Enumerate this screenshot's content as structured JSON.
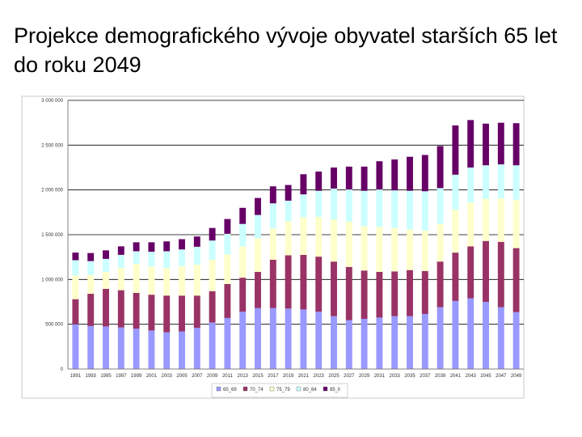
{
  "slide": {
    "title": "Projekce demografického vývoje obyvatel starších 65 let do roku 2049"
  },
  "chart_data": {
    "type": "bar",
    "stacked": true,
    "title": "",
    "xlabel": "",
    "ylabel": "",
    "ylim": [
      0,
      3000000
    ],
    "grid": true,
    "legend_position": "bottom",
    "y_ticks": [
      "0",
      "500 000",
      "1 000 000",
      "1 500 000",
      "2 000 000",
      "2 500 000",
      "3 000 000"
    ],
    "categories": [
      "1991",
      "1993",
      "1995",
      "1997",
      "1999",
      "2001",
      "2003",
      "2005",
      "2007",
      "2009",
      "2011",
      "2013",
      "2015",
      "2017",
      "2019",
      "2021",
      "2023",
      "2025",
      "2027",
      "2029",
      "2031",
      "2033",
      "2035",
      "2037",
      "2039",
      "2041",
      "2043",
      "2045",
      "2047",
      "2049"
    ],
    "series": [
      {
        "name": "65_69",
        "color": "#9999ff",
        "values": [
          500000,
          480000,
          475000,
          465000,
          450000,
          430000,
          410000,
          420000,
          460000,
          520000,
          570000,
          640000,
          680000,
          680000,
          675000,
          665000,
          640000,
          590000,
          545000,
          560000,
          575000,
          590000,
          590000,
          615000,
          690000,
          760000,
          790000,
          750000,
          690000,
          635000
        ]
      },
      {
        "name": "70_74",
        "color": "#993366",
        "values": [
          280000,
          360000,
          420000,
          415000,
          400000,
          400000,
          410000,
          400000,
          360000,
          350000,
          380000,
          380000,
          405000,
          540000,
          595000,
          610000,
          615000,
          610000,
          595000,
          540000,
          510000,
          500000,
          515000,
          480000,
          510000,
          540000,
          580000,
          680000,
          730000,
          715000
        ]
      },
      {
        "name": "75_79",
        "color": "#ffffcc",
        "values": [
          265000,
          210000,
          190000,
          250000,
          325000,
          315000,
          310000,
          330000,
          345000,
          350000,
          330000,
          350000,
          375000,
          350000,
          380000,
          420000,
          445000,
          470000,
          505000,
          495000,
          500000,
          485000,
          455000,
          450000,
          420000,
          480000,
          490000,
          470000,
          485000,
          540000
        ]
      },
      {
        "name": "80_84",
        "color": "#ccffff",
        "values": [
          170000,
          155000,
          145000,
          145000,
          140000,
          165000,
          185000,
          185000,
          200000,
          215000,
          230000,
          250000,
          260000,
          280000,
          230000,
          255000,
          290000,
          345000,
          360000,
          395000,
          420000,
          420000,
          430000,
          440000,
          400000,
          390000,
          390000,
          375000,
          380000,
          385000
        ]
      },
      {
        "name": "85_ll",
        "color": "#660066",
        "values": [
          85000,
          90000,
          95000,
          95000,
          100000,
          105000,
          110000,
          115000,
          115000,
          140000,
          165000,
          180000,
          190000,
          190000,
          175000,
          225000,
          215000,
          235000,
          255000,
          270000,
          315000,
          345000,
          380000,
          405000,
          470000,
          550000,
          530000,
          465000,
          465000,
          470000
        ]
      }
    ]
  }
}
